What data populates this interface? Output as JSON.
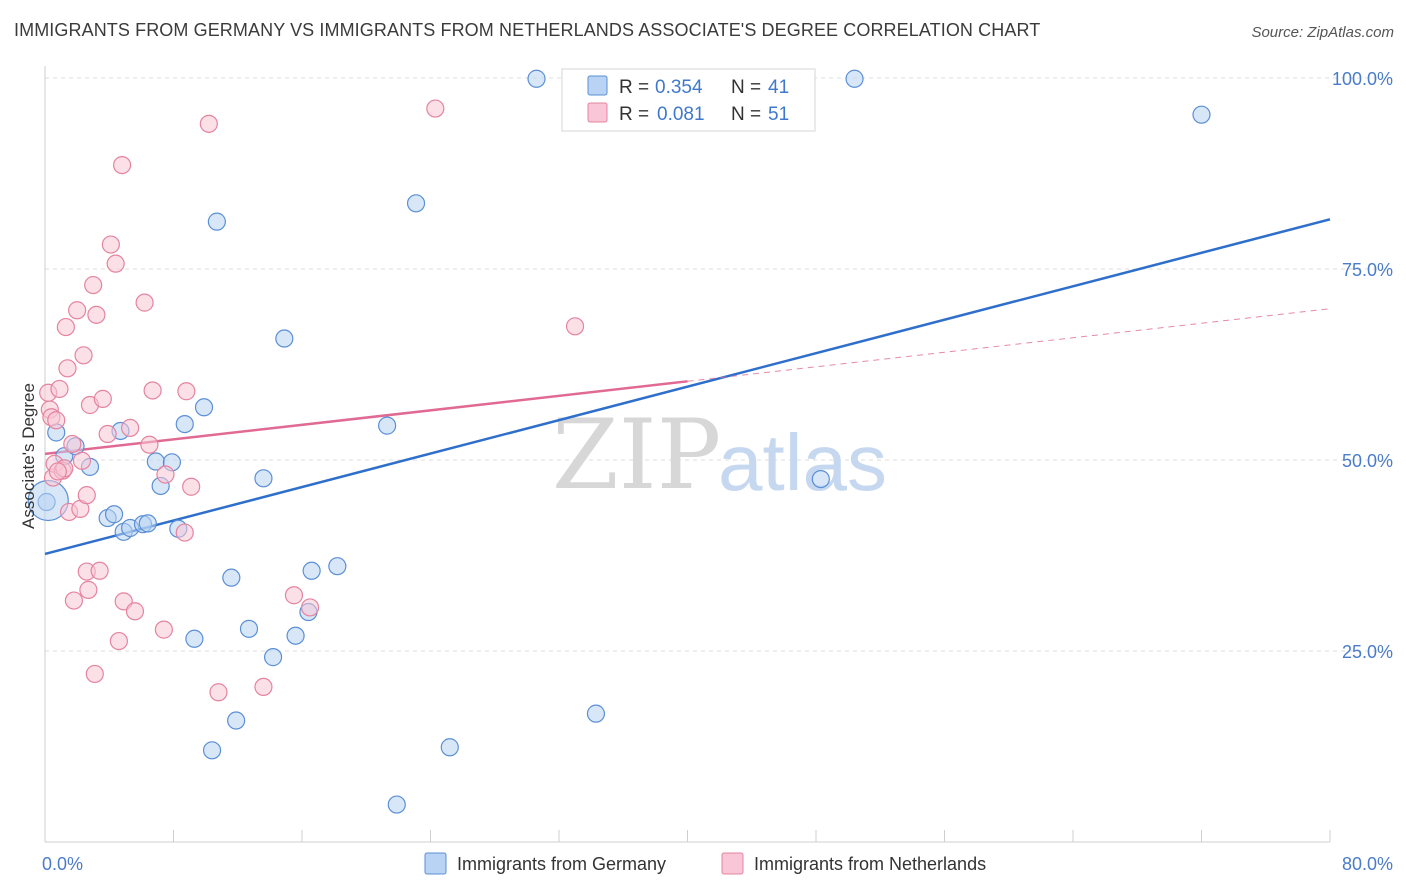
{
  "title": "IMMIGRANTS FROM GERMANY VS IMMIGRANTS FROM NETHERLANDS ASSOCIATE'S DEGREE CORRELATION CHART",
  "source": "Source: ZipAtlas.com",
  "watermark": {
    "zip": "ZIP",
    "atlas": "atlas"
  },
  "colors": {
    "germany_fill": "#b8d3f3",
    "germany_stroke": "#5b8fd6",
    "germany_line": "#2f6fcc",
    "netherlands_fill": "#f8c6d6",
    "netherlands_stroke": "#e5849f",
    "netherlands_line": "#e06a94",
    "tick_text": "#4a7cc9",
    "grid": "#dddddd"
  },
  "legend": {
    "rows": [
      {
        "r_label": "R =",
        "r_value": "0.354",
        "n_label": "N =",
        "n_value": "41"
      },
      {
        "r_label": "R =",
        "r_value": "0.081",
        "n_label": "N =",
        "n_value": "51"
      }
    ]
  },
  "bottom_legend": [
    "Immigrants from Germany",
    "Immigrants from Netherlands"
  ],
  "chart_data": {
    "type": "scatter",
    "title": "IMMIGRANTS FROM GERMANY VS IMMIGRANTS FROM NETHERLANDS ASSOCIATE'S DEGREE CORRELATION CHART",
    "xlabel": "",
    "ylabel": "Associate's Degree",
    "xlim": [
      0,
      80
    ],
    "ylim": [
      0,
      100
    ],
    "x_tick_labels": [
      "0.0%",
      "80.0%"
    ],
    "y_ticks": [
      25,
      50,
      75,
      100
    ],
    "y_tick_labels": [
      "25.0%",
      "50.0%",
      "75.0%",
      "100.0%"
    ],
    "grid": true,
    "series": [
      {
        "name": "Immigrants from Germany",
        "R": 0.354,
        "N": 41,
        "trend": {
          "x": [
            0,
            80
          ],
          "y": [
            37.7,
            81.5
          ],
          "dashed_from": null
        },
        "points": [
          [
            0.1,
            44.5
          ],
          [
            0.7,
            53.6
          ],
          [
            1.2,
            50.5
          ],
          [
            1.9,
            51.8
          ],
          [
            2.8,
            49.1
          ],
          [
            3.9,
            42.4
          ],
          [
            4.3,
            42.9
          ],
          [
            4.7,
            53.8
          ],
          [
            4.9,
            40.6
          ],
          [
            5.3,
            41.1
          ],
          [
            6.1,
            41.6
          ],
          [
            6.4,
            41.7
          ],
          [
            6.9,
            49.8
          ],
          [
            7.2,
            46.6
          ],
          [
            7.9,
            49.7
          ],
          [
            8.3,
            41.0
          ],
          [
            8.7,
            54.7
          ],
          [
            9.3,
            26.6
          ],
          [
            9.9,
            56.9
          ],
          [
            10.4,
            12.0
          ],
          [
            10.7,
            81.2
          ],
          [
            11.6,
            34.6
          ],
          [
            11.9,
            15.9
          ],
          [
            12.7,
            27.9
          ],
          [
            13.6,
            47.6
          ],
          [
            14.2,
            24.2
          ],
          [
            14.9,
            65.9
          ],
          [
            15.6,
            27.0
          ],
          [
            16.4,
            30.1
          ],
          [
            16.6,
            35.5
          ],
          [
            18.2,
            36.1
          ],
          [
            21.3,
            54.5
          ],
          [
            21.9,
            4.9
          ],
          [
            23.1,
            83.6
          ],
          [
            25.2,
            12.4
          ],
          [
            30.6,
            99.9
          ],
          [
            34.3,
            16.8
          ],
          [
            48.3,
            47.5
          ],
          [
            50.4,
            99.9
          ],
          [
            72.0,
            95.2
          ],
          [
            0.2,
            44.7
          ]
        ]
      },
      {
        "name": "Immigrants from Netherlands",
        "R": 0.081,
        "N": 51,
        "trend": {
          "x": [
            0,
            80
          ],
          "y": [
            50.8,
            69.8
          ],
          "dashed_from": 40
        },
        "points": [
          [
            0.2,
            58.8
          ],
          [
            0.3,
            56.6
          ],
          [
            0.4,
            55.6
          ],
          [
            0.5,
            47.7
          ],
          [
            0.6,
            49.5
          ],
          [
            0.7,
            55.2
          ],
          [
            0.9,
            59.3
          ],
          [
            1.1,
            48.6
          ],
          [
            1.3,
            67.4
          ],
          [
            1.4,
            62.0
          ],
          [
            1.5,
            43.2
          ],
          [
            1.7,
            52.1
          ],
          [
            1.8,
            31.6
          ],
          [
            2.0,
            69.6
          ],
          [
            2.2,
            43.6
          ],
          [
            2.4,
            63.7
          ],
          [
            2.6,
            45.4
          ],
          [
            2.6,
            35.4
          ],
          [
            2.7,
            33.0
          ],
          [
            2.8,
            57.2
          ],
          [
            3.0,
            72.9
          ],
          [
            3.1,
            22.0
          ],
          [
            3.2,
            69.0
          ],
          [
            3.4,
            35.5
          ],
          [
            3.6,
            58.0
          ],
          [
            3.9,
            53.4
          ],
          [
            4.1,
            78.2
          ],
          [
            4.4,
            75.7
          ],
          [
            4.6,
            26.3
          ],
          [
            4.8,
            88.6
          ],
          [
            4.9,
            31.5
          ],
          [
            5.3,
            54.2
          ],
          [
            5.6,
            30.2
          ],
          [
            6.2,
            70.6
          ],
          [
            6.5,
            52.0
          ],
          [
            6.7,
            59.1
          ],
          [
            7.4,
            27.8
          ],
          [
            7.5,
            48.1
          ],
          [
            8.7,
            40.5
          ],
          [
            8.8,
            59.0
          ],
          [
            9.1,
            46.5
          ],
          [
            10.2,
            94.0
          ],
          [
            10.8,
            19.6
          ],
          [
            13.6,
            20.3
          ],
          [
            15.5,
            32.3
          ],
          [
            16.5,
            30.7
          ],
          [
            24.3,
            96.0
          ],
          [
            33.0,
            67.5
          ],
          [
            1.2,
            48.9
          ],
          [
            0.8,
            48.5
          ],
          [
            2.3,
            49.9
          ]
        ]
      }
    ]
  }
}
